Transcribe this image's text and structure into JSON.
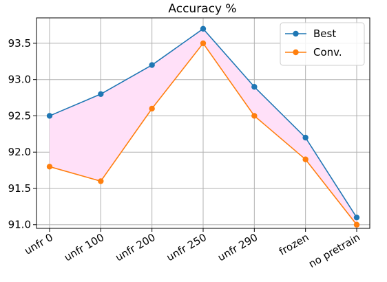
{
  "chart_data": {
    "type": "line",
    "title": "Accuracy %",
    "xlabel": "",
    "ylabel": "",
    "categories": [
      "unfr 0",
      "unfr 100",
      "unfr 200",
      "unfr 250",
      "unfr 290",
      "frozen",
      "no pretrain"
    ],
    "series": [
      {
        "name": "Best",
        "color": "#1f77b4",
        "values": [
          92.5,
          92.8,
          93.2,
          93.7,
          92.9,
          92.2,
          91.1
        ]
      },
      {
        "name": "Conv.",
        "color": "#ff7f0e",
        "values": [
          91.8,
          91.6,
          92.6,
          93.5,
          92.5,
          91.9,
          91.0
        ]
      }
    ],
    "fill_between": {
      "color": "#ffe0f8"
    },
    "ylim": [
      90.95,
      93.85
    ],
    "yticks": [
      91.0,
      91.5,
      92.0,
      92.5,
      93.0,
      93.5
    ],
    "ytick_labels": [
      "91.0",
      "91.5",
      "92.0",
      "92.5",
      "93.0",
      "93.5"
    ],
    "grid": true,
    "legend_position": "top-right"
  }
}
